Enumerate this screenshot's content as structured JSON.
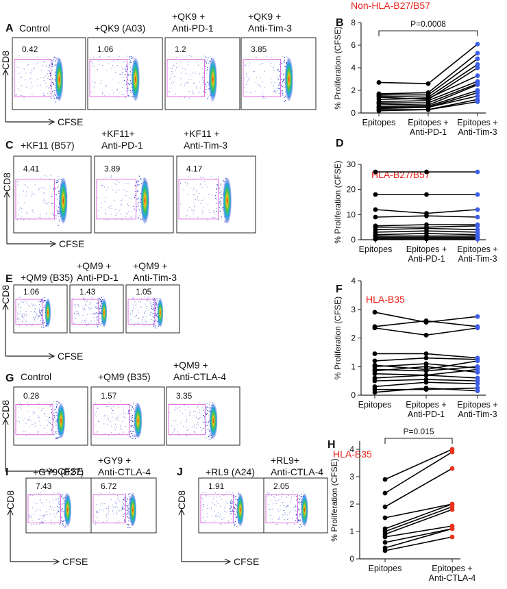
{
  "flow_axis": {
    "y": "CD8",
    "x": "CFSE"
  },
  "flow_rows": [
    {
      "letter": "A",
      "panels": [
        {
          "title": [
            "Control"
          ],
          "value": 0.42
        },
        {
          "title": [
            "+QK9 (A03)"
          ],
          "value": 1.06
        },
        {
          "title": [
            "+QK9 +",
            "Anti-PD-1"
          ],
          "value": 1.2
        },
        {
          "title": [
            "+QK9 +",
            "Anti-Tim-3"
          ],
          "value": 3.85
        }
      ]
    },
    {
      "letter": "C",
      "panels": [
        {
          "title": [
            "+KF11 (B57)"
          ],
          "value": 4.41
        },
        {
          "title": [
            "+KF11+",
            "Anti-PD-1"
          ],
          "value": 3.89
        },
        {
          "title": [
            "+KF11 +",
            "Anti-Tim-3"
          ],
          "value": 4.17
        }
      ]
    },
    {
      "letter": "E",
      "panels": [
        {
          "title": [
            "+QM9 (B35)"
          ],
          "value": 1.06
        },
        {
          "title": [
            "+QM9 +",
            "Anti-PD-1"
          ],
          "value": 1.43
        },
        {
          "title": [
            "+QM9 +",
            "Anti-Tim-3"
          ],
          "value": 1.05
        }
      ]
    },
    {
      "letter": "G",
      "panels": [
        {
          "title": [
            "Control"
          ],
          "value": 0.28
        },
        {
          "title": [
            "+QM9 (B35)"
          ],
          "value": 1.57
        },
        {
          "title": [
            "+QM9 +",
            "Anti-CTLA-4"
          ],
          "value": 3.35
        }
      ]
    },
    {
      "letter": "I",
      "panels": [
        {
          "title": [
            "+GY9 (B27)"
          ],
          "value": 7.43
        },
        {
          "title": [
            "+GY9 +",
            "Anti-CTLA-4"
          ],
          "value": 6.72
        }
      ]
    },
    {
      "letter": "J",
      "panels": [
        {
          "title": [
            "+RL9 (A24)"
          ],
          "value": 1.91
        },
        {
          "title": [
            "+RL9+",
            "Anti-CTLA-4"
          ],
          "value": 2.05
        }
      ]
    }
  ],
  "chart_data": [
    {
      "type": "line",
      "letter": "B",
      "title": "Non-HLA-B27/B57",
      "ylabel": "% Proliferation (CFSE)",
      "categories": [
        "Epitopes",
        "Epitopes + Anti-PD-1",
        "Epitopes + Anti-Tim-3"
      ],
      "ylim": [
        0,
        8
      ],
      "yticks": [
        0,
        2,
        4,
        6,
        8
      ],
      "annotation": "P=0.0008",
      "line_color": "#000000",
      "point_colors": [
        "#000000",
        "#000000",
        "#3f5ee8"
      ],
      "series": [
        {
          "values": [
            2.7,
            2.6,
            6.1
          ]
        },
        {
          "values": [
            1.7,
            1.8,
            5.3
          ]
        },
        {
          "values": [
            1.6,
            1.6,
            4.8
          ]
        },
        {
          "values": [
            1.5,
            1.4,
            4.3
          ]
        },
        {
          "values": [
            1.4,
            1.2,
            4.0
          ]
        },
        {
          "values": [
            1.2,
            1.3,
            3.3
          ]
        },
        {
          "values": [
            1.0,
            1.1,
            2.8
          ]
        },
        {
          "values": [
            0.9,
            0.9,
            2.6
          ]
        },
        {
          "values": [
            0.8,
            0.7,
            2.5
          ]
        },
        {
          "values": [
            0.6,
            0.6,
            2.0
          ]
        },
        {
          "values": [
            0.5,
            0.5,
            1.8
          ]
        },
        {
          "values": [
            0.4,
            0.5,
            1.5
          ]
        },
        {
          "values": [
            0.3,
            0.3,
            1.2
          ]
        },
        {
          "values": [
            0.2,
            0.3,
            1.0
          ]
        }
      ]
    },
    {
      "type": "line",
      "letter": "D",
      "title": "HLA-B27/B57",
      "ylabel": "% Proliferation (CFSE)",
      "categories": [
        "Epitopes",
        "Epitopes + Anti-PD-1",
        "Epitopes + Anti-Tim-3"
      ],
      "ylim": [
        0,
        30
      ],
      "yticks": [
        0,
        10,
        20,
        30
      ],
      "line_color": "#000000",
      "point_colors": [
        "#000000",
        "#000000",
        "#3f5ee8"
      ],
      "series": [
        {
          "values": [
            27,
            27,
            27
          ]
        },
        {
          "values": [
            18,
            18,
            18
          ]
        },
        {
          "values": [
            12,
            10.5,
            12
          ]
        },
        {
          "values": [
            9,
            9.5,
            9
          ]
        },
        {
          "values": [
            5.5,
            6,
            6
          ]
        },
        {
          "values": [
            5,
            5,
            5.5
          ]
        },
        {
          "values": [
            4,
            4.5,
            4
          ]
        },
        {
          "values": [
            3,
            3.5,
            3
          ]
        },
        {
          "values": [
            2,
            2.5,
            2
          ]
        },
        {
          "values": [
            1.5,
            1.5,
            1.5
          ]
        },
        {
          "values": [
            1,
            1,
            1
          ]
        },
        {
          "values": [
            0.5,
            0.5,
            0.5
          ]
        },
        {
          "values": [
            0.2,
            0.3,
            0.2
          ]
        }
      ]
    },
    {
      "type": "line",
      "letter": "F",
      "title": "HLA-B35",
      "ylabel": "% Proliferation (CFSE)",
      "categories": [
        "Epitopes",
        "Epitopes + Anti-PD-1",
        "Epitopes + Anti-Tim-3"
      ],
      "ylim": [
        0,
        4
      ],
      "yticks": [
        0,
        1,
        2,
        3,
        4
      ],
      "line_color": "#000000",
      "point_colors": [
        "#000000",
        "#000000",
        "#3f5ee8"
      ],
      "series": [
        {
          "values": [
            2.9,
            2.55,
            2.75
          ]
        },
        {
          "values": [
            2.4,
            2.6,
            2.4
          ]
        },
        {
          "values": [
            2.35,
            2.1,
            2.35
          ]
        },
        {
          "values": [
            1.45,
            1.45,
            1.3
          ]
        },
        {
          "values": [
            1.2,
            1.3,
            1.25
          ]
        },
        {
          "values": [
            1.05,
            0.9,
            1.2
          ]
        },
        {
          "values": [
            1.0,
            1.1,
            0.95
          ]
        },
        {
          "values": [
            0.9,
            0.85,
            1.0
          ]
        },
        {
          "values": [
            0.85,
            1.0,
            0.8
          ]
        },
        {
          "values": [
            0.75,
            0.7,
            0.9
          ]
        },
        {
          "values": [
            0.6,
            0.7,
            0.6
          ]
        },
        {
          "values": [
            0.5,
            0.55,
            0.5
          ]
        },
        {
          "values": [
            0.3,
            0.45,
            0.4
          ]
        },
        {
          "values": [
            0.2,
            0.2,
            0.25
          ]
        },
        {
          "values": [
            0.1,
            0.25,
            0.15
          ]
        }
      ]
    },
    {
      "type": "line",
      "letter": "H",
      "title": "HLA-B35",
      "ylabel": "% Proliferation (CFSE)",
      "categories": [
        "Epitopes",
        "Epitopes + Anti-CTLA-4"
      ],
      "ylim": [
        0,
        4.3
      ],
      "yticks": [
        0,
        1,
        2,
        3,
        4
      ],
      "annotation": "P=0.015",
      "line_color": "#000000",
      "point_colors": [
        "#000000",
        "#e8321b"
      ],
      "series": [
        {
          "values": [
            2.9,
            4.0
          ]
        },
        {
          "values": [
            2.4,
            3.9
          ]
        },
        {
          "values": [
            1.9,
            3.3
          ]
        },
        {
          "values": [
            1.5,
            2.0
          ]
        },
        {
          "values": [
            1.1,
            2.0
          ]
        },
        {
          "values": [
            1.0,
            1.9
          ]
        },
        {
          "values": [
            0.9,
            1.8
          ]
        },
        {
          "values": [
            0.8,
            1.2
          ]
        },
        {
          "values": [
            0.6,
            1.1
          ]
        },
        {
          "values": [
            0.4,
            1.1
          ]
        },
        {
          "values": [
            0.3,
            0.8
          ]
        }
      ]
    }
  ]
}
